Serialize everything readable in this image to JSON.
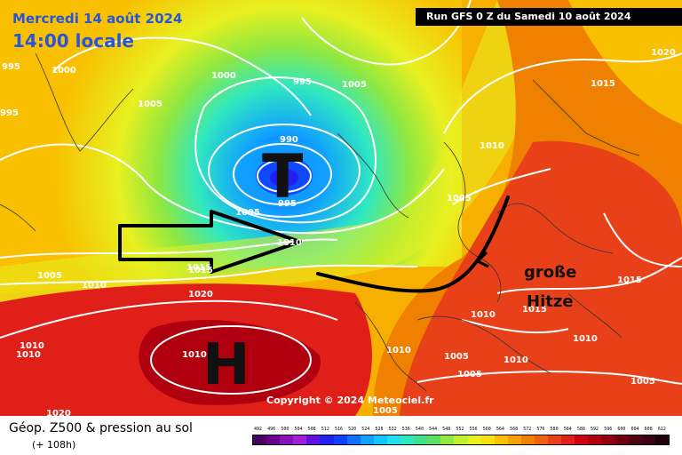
{
  "header": {
    "date_line": "Mercredi 14 août 2024",
    "time_line": "14:00 locale",
    "run_info": "Run GFS 0 Z du Samedi 10 août 2024"
  },
  "copyright": "Copyright © 2024 Meteociel.fr",
  "legend": {
    "title": "Géop. Z500 & pression au sol",
    "subtitle": "(+ 108h)",
    "scale_values": [
      "492",
      "496",
      "500",
      "504",
      "508",
      "512",
      "516",
      "520",
      "524",
      "528",
      "532",
      "536",
      "540",
      "544",
      "548",
      "552",
      "556",
      "560",
      "564",
      "568",
      "572",
      "576",
      "580",
      "584",
      "588",
      "592",
      "596",
      "600",
      "604",
      "608",
      "612"
    ],
    "scale_colors": [
      "#4a0060",
      "#6a0090",
      "#8a10b8",
      "#a020d8",
      "#6010e0",
      "#2020f0",
      "#1040ff",
      "#1070ff",
      "#10a0ff",
      "#10c8ff",
      "#20e0f0",
      "#30e8c0",
      "#40e090",
      "#60e060",
      "#90e840",
      "#c0f030",
      "#e8f020",
      "#f8e010",
      "#f8c000",
      "#f8a000",
      "#f08000",
      "#f06010",
      "#e84018",
      "#e02018",
      "#d00010",
      "#b00010",
      "#900010",
      "#700010",
      "#500010",
      "#380010",
      "#200008"
    ]
  },
  "map": {
    "isobar_labels": [
      "995",
      "1000",
      "1005",
      "995",
      "995",
      "1000",
      "1005",
      "990",
      "995",
      "1005",
      "1010",
      "1010",
      "1005",
      "1010",
      "1015",
      "1020",
      "1020",
      "1015",
      "1005",
      "1010",
      "1010",
      "1010",
      "1015",
      "1015",
      "1010",
      "1010",
      "1005",
      "1010",
      "1005",
      "1005",
      "1015",
      "1020",
      "1005",
      "1010"
    ],
    "annotations": {
      "low_symbol": "T",
      "high_symbol": "H",
      "german_note_line1": "große",
      "german_note_line2": "Hitze"
    }
  }
}
